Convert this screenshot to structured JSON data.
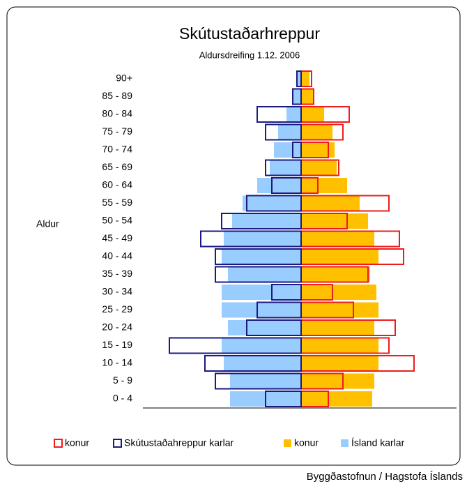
{
  "chart_data": {
    "type": "pyramid",
    "title": "Skútustaðarhreppur",
    "subtitle": "Aldursdreifing 1.12. 2006",
    "y_label": "Aldur",
    "source": "Byggðastofnun / Hagstofa Íslands",
    "categories": [
      "0 - 4",
      "5 - 9",
      "10 - 14",
      "15 - 19",
      "20 - 24",
      "25 - 29",
      "30 - 34",
      "35 - 39",
      "40 - 44",
      "45 - 49",
      "50 - 54",
      "55 - 59",
      "60 - 64",
      "65 - 69",
      "70 - 74",
      "75 - 79",
      "80 - 84",
      "85 - 89",
      "90+"
    ],
    "series": [
      {
        "name": "konur",
        "color": "#ee1c1c",
        "side": "right",
        "style": "outline",
        "values": [
          1.3,
          2.0,
          5.4,
          4.2,
          4.5,
          2.5,
          1.5,
          3.2,
          4.9,
          4.7,
          2.2,
          4.2,
          0.8,
          1.8,
          1.3,
          2.0,
          2.3,
          0.6,
          0.5
        ]
      },
      {
        "name": "Skútustaðahreppur karlar",
        "color": "#1a1a80",
        "side": "left",
        "style": "outline",
        "values": [
          1.7,
          4.1,
          4.6,
          6.3,
          2.6,
          2.1,
          1.4,
          4.1,
          4.1,
          4.8,
          3.8,
          2.6,
          1.4,
          1.7,
          0.4,
          1.7,
          2.1,
          0.4,
          0.2
        ]
      },
      {
        "name": "konur",
        "color": "#ffc000",
        "side": "right",
        "style": "fill",
        "values": [
          3.4,
          3.5,
          3.7,
          3.7,
          3.5,
          3.7,
          3.6,
          3.3,
          3.7,
          3.5,
          3.2,
          2.8,
          2.2,
          1.7,
          1.6,
          1.5,
          1.1,
          0.6,
          0.4
        ]
      },
      {
        "name": "Ísland karlar",
        "color": "#99ccff",
        "side": "left",
        "style": "fill",
        "values": [
          3.4,
          3.4,
          3.7,
          3.8,
          3.5,
          3.8,
          3.8,
          3.5,
          3.8,
          3.7,
          3.3,
          2.8,
          2.1,
          1.5,
          1.3,
          1.1,
          0.7,
          0.4,
          0.2
        ]
      }
    ]
  }
}
